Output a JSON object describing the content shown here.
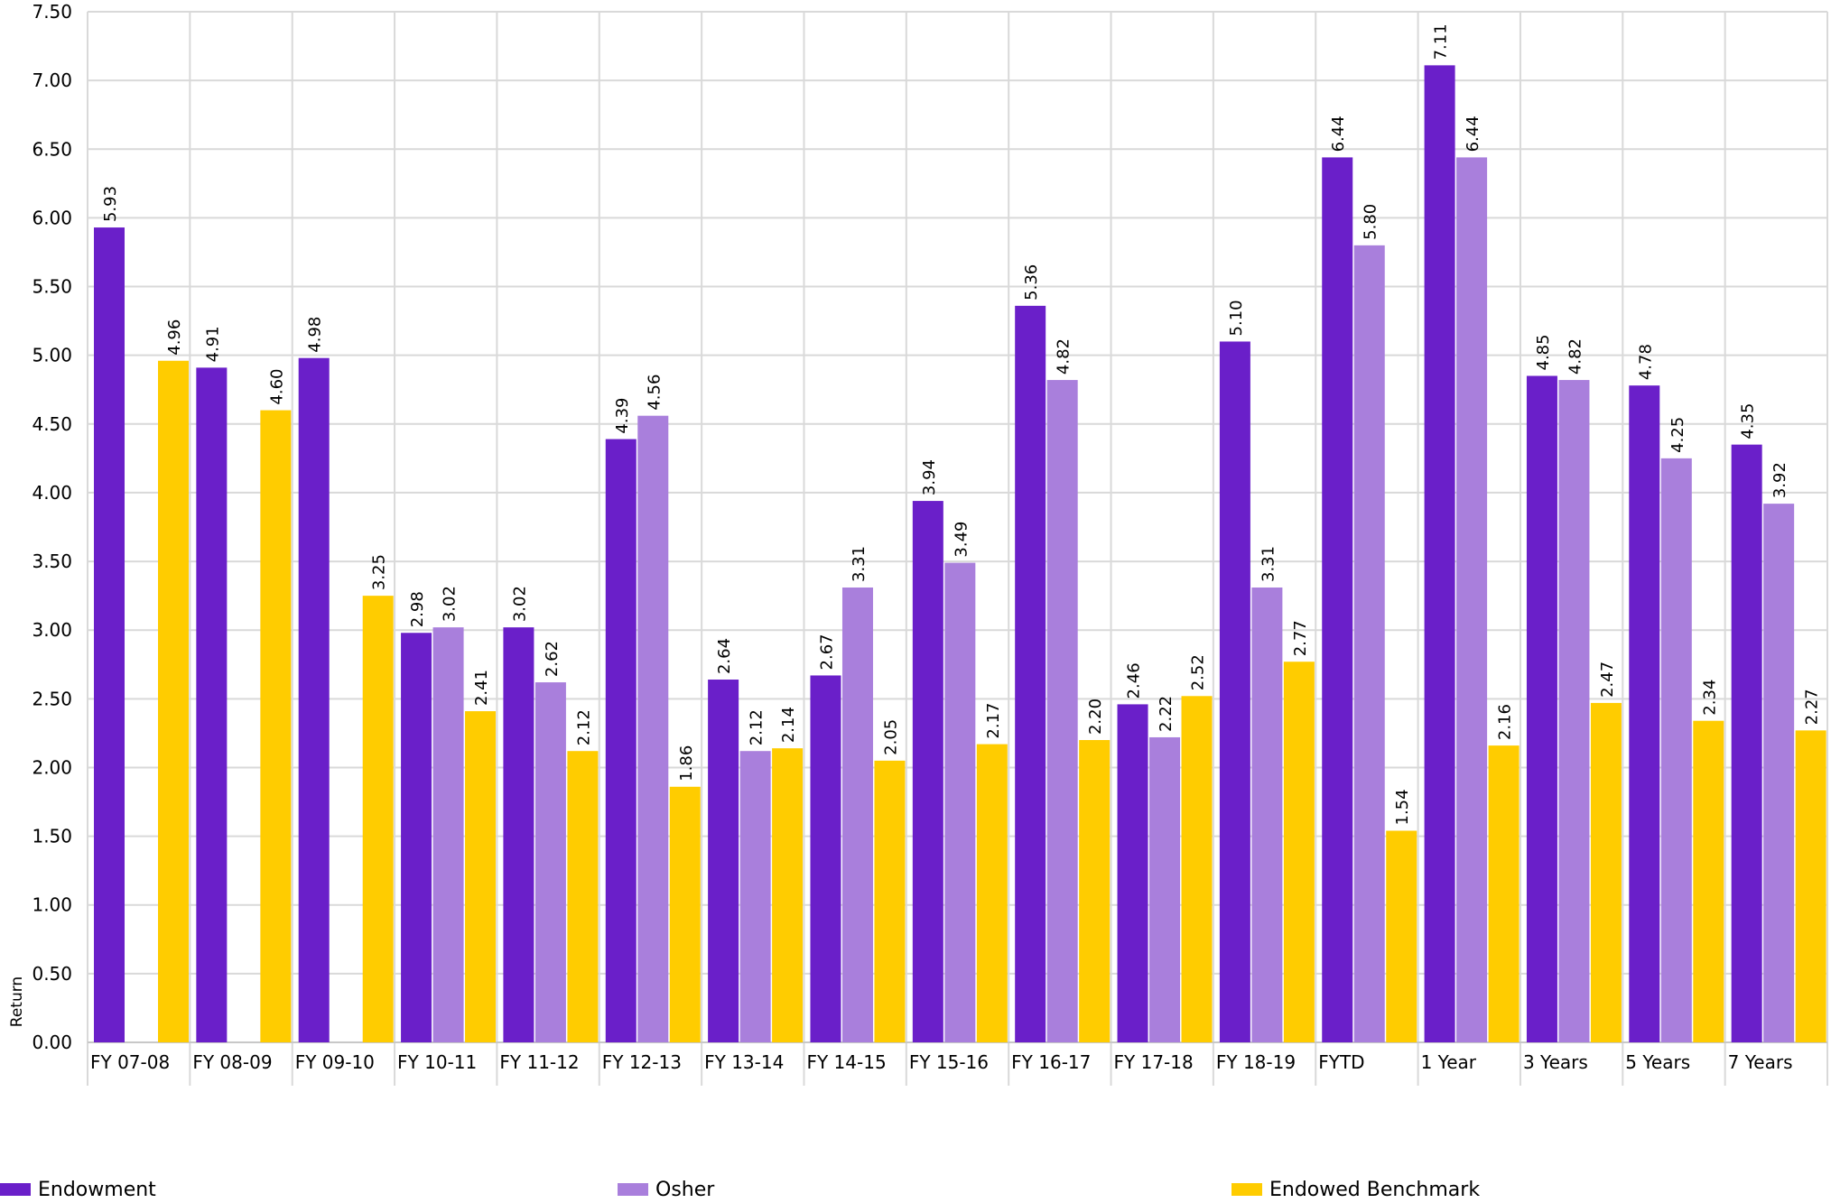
{
  "chart_data": {
    "type": "bar",
    "title": "",
    "xlabel": "",
    "ylabel": "Return",
    "ylim": [
      0,
      7.5
    ],
    "yticks": [
      "0.00",
      "0.50",
      "1.00",
      "1.50",
      "2.00",
      "2.50",
      "3.00",
      "3.50",
      "4.00",
      "4.50",
      "5.00",
      "5.50",
      "6.00",
      "6.50",
      "7.00",
      "7.50"
    ],
    "grid": true,
    "legend_position": "bottom",
    "categories": [
      "FY 07-08",
      "FY 08-09",
      "FY 09-10",
      "FY 10-11",
      "FY 11-12",
      "FY 12-13",
      "FY 13-14",
      "FY 14-15",
      "FY 15-16",
      "FY 16-17",
      "FY 17-18",
      "FY 18-19",
      "FYTD",
      "1 Year",
      "3 Years",
      "5 Years",
      "7 Years"
    ],
    "series": [
      {
        "name": "Endowment",
        "color": "#6a1fc9",
        "values": [
          5.93,
          4.91,
          4.98,
          2.98,
          3.02,
          4.39,
          2.64,
          2.67,
          3.94,
          5.36,
          2.46,
          5.1,
          6.44,
          7.11,
          4.85,
          4.78,
          4.35
        ],
        "labels": [
          "5.93",
          "4.91",
          "4.98",
          "2.98",
          "3.02",
          "4.39",
          "2.64",
          "2.67",
          "3.94",
          "5.36",
          "2.46",
          "5.10",
          "6.44",
          "7.11",
          "4.85",
          "4.78",
          "4.35"
        ]
      },
      {
        "name": "Osher",
        "color": "#a97fdc",
        "values": [
          null,
          null,
          null,
          3.02,
          2.62,
          4.56,
          2.12,
          3.31,
          3.49,
          4.82,
          2.22,
          3.31,
          5.8,
          6.44,
          4.82,
          4.25,
          3.92
        ],
        "labels": [
          "",
          "",
          "",
          "3.02",
          "2.62",
          "4.56",
          "2.12",
          "3.31",
          "3.49",
          "4.82",
          "2.22",
          "3.31",
          "5.80",
          "6.44",
          "4.82",
          "4.25",
          "3.92"
        ]
      },
      {
        "name": "Endowed Benchmark",
        "color": "#ffcc00",
        "values": [
          4.96,
          4.6,
          3.25,
          2.41,
          2.12,
          1.86,
          2.14,
          2.05,
          2.17,
          2.2,
          2.52,
          2.77,
          1.54,
          2.16,
          2.47,
          2.34,
          2.27
        ],
        "labels": [
          "4.96",
          "4.60",
          "3.25",
          "2.41",
          "2.12",
          "1.86",
          "2.14",
          "2.05",
          "2.17",
          "2.20",
          "2.52",
          "2.77",
          "1.54",
          "2.16",
          "2.47",
          "2.34",
          "2.27"
        ]
      }
    ]
  }
}
